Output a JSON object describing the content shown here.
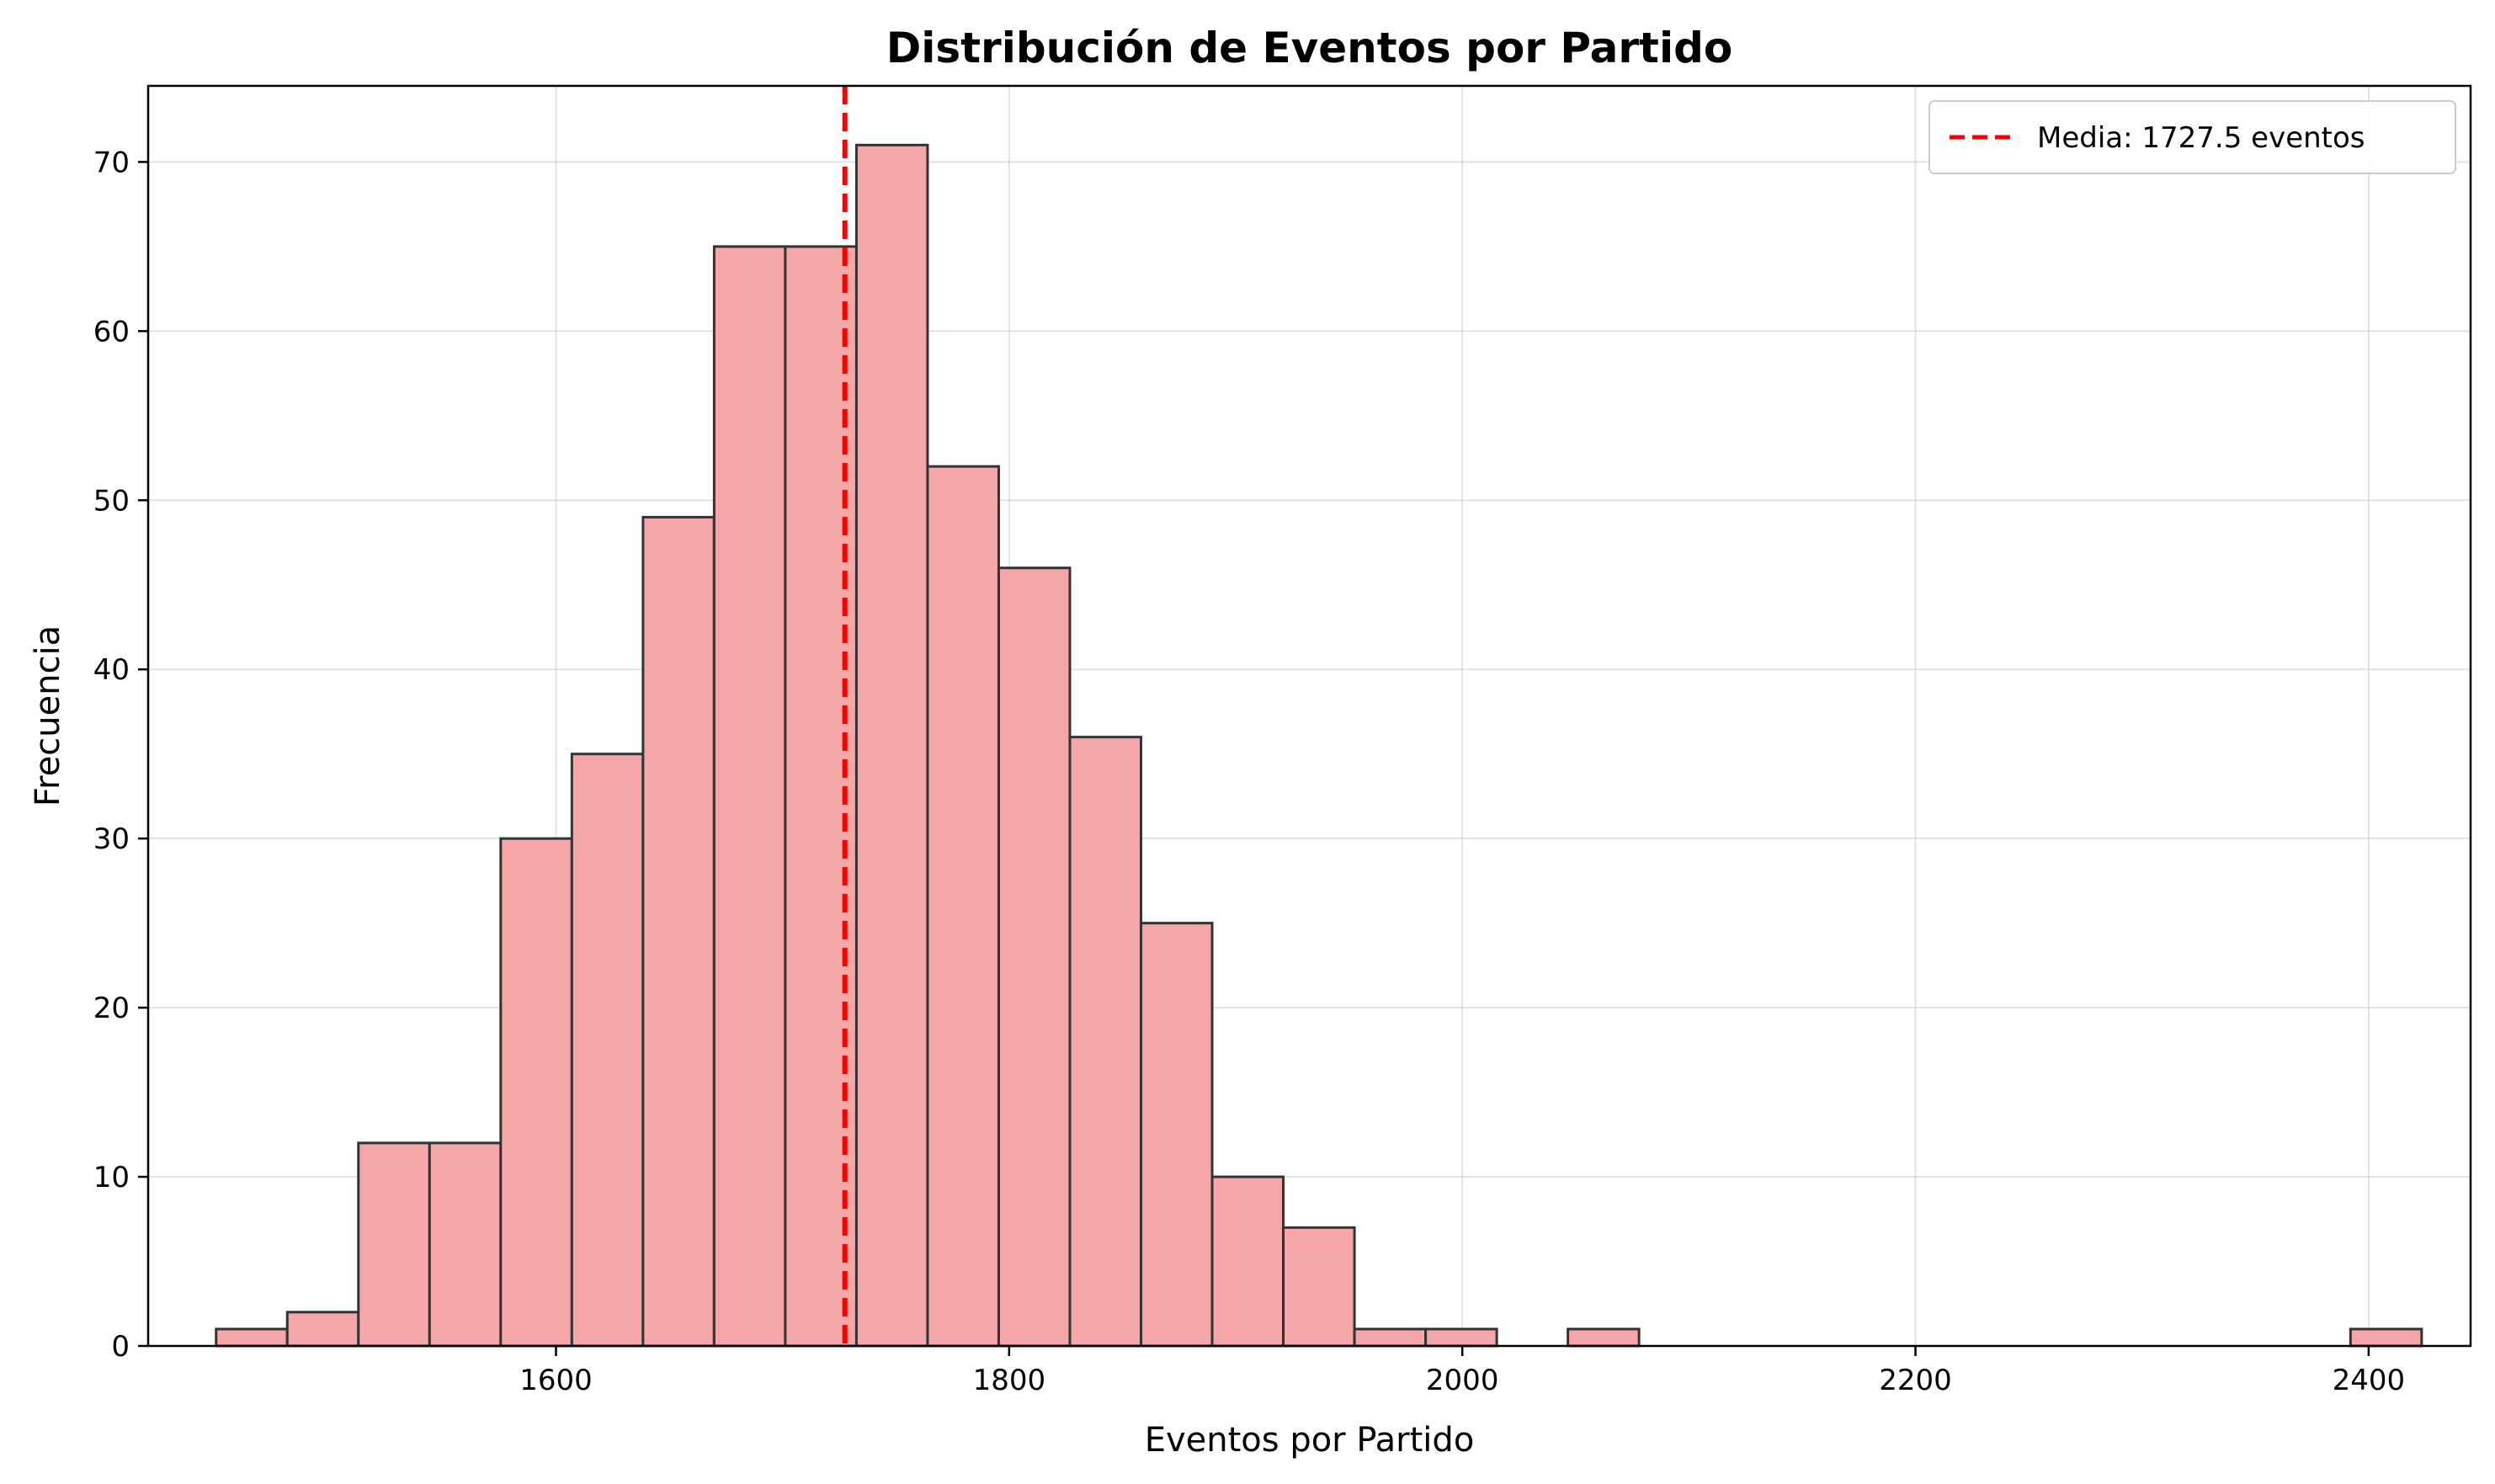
{
  "chart_data": {
    "type": "bar",
    "title": "Distribución de Eventos por Partido",
    "xlabel": "Eventos por Partido",
    "ylabel": "Frecuencia",
    "xlim": [
      1420,
      2445
    ],
    "ylim": [
      0,
      74.5
    ],
    "xticks": [
      1600,
      1800,
      2000,
      2200,
      2400
    ],
    "yticks": [
      0,
      10,
      20,
      30,
      40,
      50,
      60,
      70
    ],
    "grid": true,
    "legend_position": "top-right",
    "bin_start": 1450,
    "bin_width": 31.4,
    "counts": [
      1,
      2,
      12,
      12,
      30,
      35,
      49,
      65,
      65,
      71,
      52,
      46,
      36,
      25,
      10,
      7,
      1,
      1,
      0,
      1,
      0,
      0,
      0,
      0,
      0,
      0,
      0,
      0,
      0,
      0,
      1
    ],
    "mean": 1727.5,
    "legend_label": "Media: 1727.5 eventos",
    "bar_color": "#f4a6a8",
    "bar_edge_color": "#333333",
    "mean_line_color": "#ff0000"
  }
}
